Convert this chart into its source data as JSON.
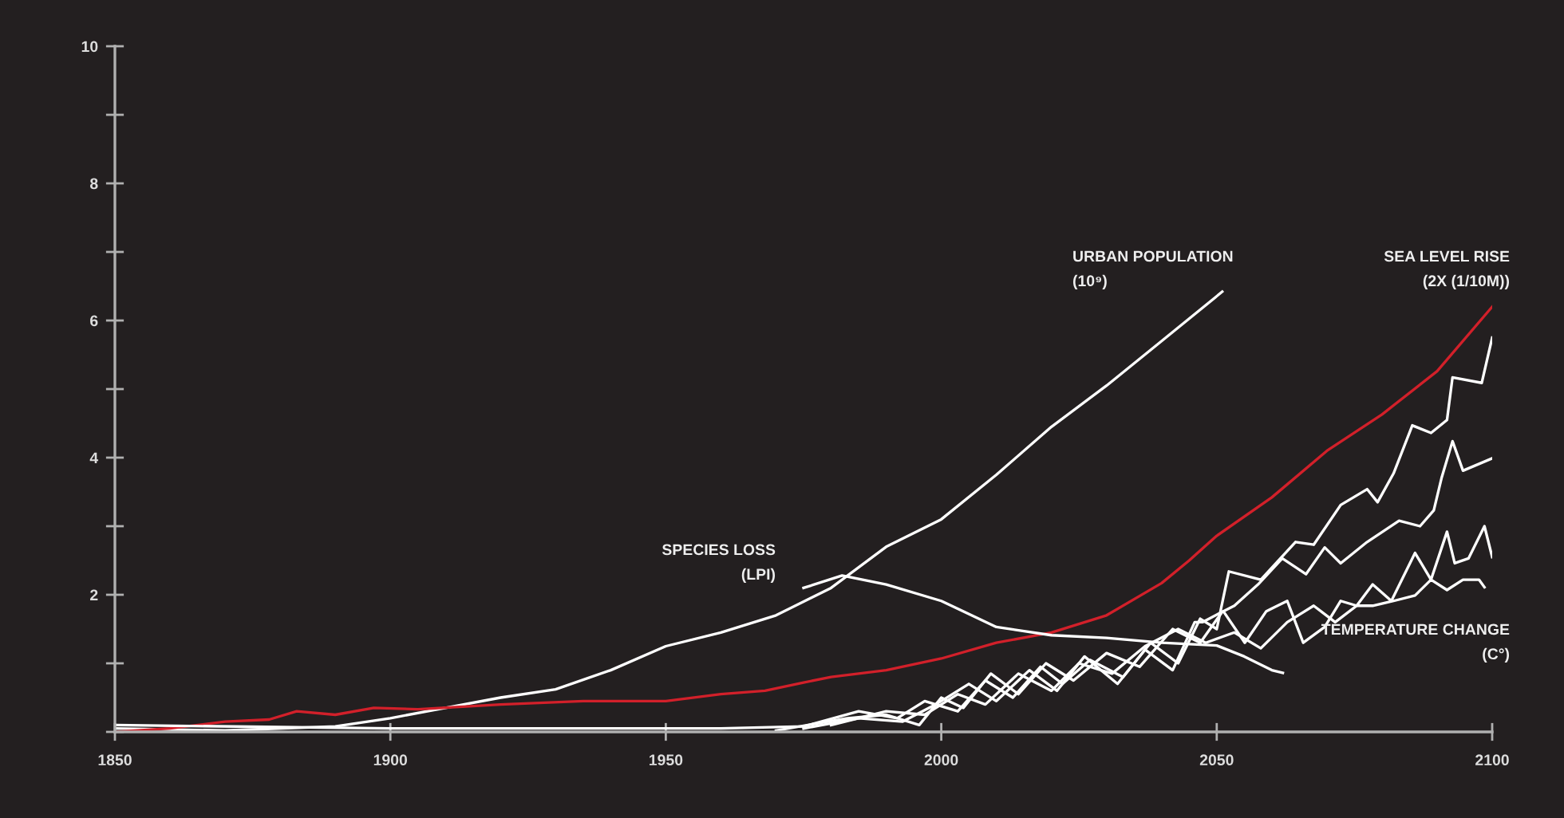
{
  "chart_data": {
    "type": "line",
    "xlim": [
      1850,
      2100
    ],
    "xticks": [
      1850,
      1900,
      1950,
      2000,
      2050,
      2100
    ],
    "ylim": [
      0,
      10
    ],
    "yticks": [
      {
        "value": 0,
        "label": null
      },
      {
        "value": 1,
        "label": null
      },
      2,
      {
        "value": 3,
        "label": null
      },
      4,
      {
        "value": 5,
        "label": null
      },
      6,
      {
        "value": 7,
        "label": null
      },
      8,
      {
        "value": 9,
        "label": null
      },
      10
    ],
    "grid": false,
    "marker": "none",
    "line_style": "solid",
    "series": [
      {
        "color": "#ffffff",
        "x": [
          1850,
          1870,
          1890,
          1900,
          1910,
          1920,
          1930,
          1940,
          1950,
          1960,
          1970,
          1980,
          1990,
          2000,
          2010,
          2020,
          2030,
          2040,
          2051
        ],
        "values": [
          0.05,
          0.02,
          0.08,
          0.2,
          0.35,
          0.5,
          0.62,
          0.9,
          1.25,
          1.45,
          1.7,
          2.1,
          2.7,
          3.1,
          3.75,
          4.45,
          5.05,
          5.7,
          6.42
        ]
      },
      {
        "color": "#d2202a",
        "x": [
          1850,
          1860,
          1870,
          1878,
          1883,
          1890,
          1897,
          1905,
          1920,
          1935,
          1950,
          1960,
          1968,
          1975,
          1980,
          1990,
          2000,
          2010,
          2020,
          2030,
          2040,
          2045,
          2050,
          2060,
          2070,
          2080,
          2090,
          2100
        ],
        "values": [
          0.0,
          0.05,
          0.15,
          0.18,
          0.3,
          0.25,
          0.35,
          0.33,
          0.4,
          0.45,
          0.45,
          0.55,
          0.6,
          0.72,
          0.8,
          0.9,
          1.07,
          1.3,
          1.45,
          1.7,
          2.17,
          2.5,
          2.86,
          3.42,
          4.1,
          4.63,
          5.26,
          6.2
        ]
      },
      {
        "color": "#ffffff",
        "x": [
          1975,
          1982,
          1990,
          2000,
          2010,
          2020,
          2030,
          2040,
          2050,
          2055,
          2060,
          2062
        ],
        "values": [
          2.1,
          2.28,
          2.15,
          1.91,
          1.53,
          1.41,
          1.37,
          1.3,
          1.26,
          1.1,
          0.9,
          0.86
        ]
      },
      {
        "color": "#ffffff",
        "x": [
          1850,
          1900,
          1960,
          1975,
          1985,
          1992,
          1997,
          2003,
          2008,
          2013,
          2018,
          2022,
          2027,
          2033,
          2038,
          2043,
          2047,
          2050,
          2052.2,
          2058,
          2064.3,
          2067.6,
          2072.5,
          2077.3,
          2079.2,
          2082.1,
          2085.5,
          2088.9,
          2091.8,
          2092.8,
          2098.1,
          2100
        ],
        "values": [
          0.1,
          0.05,
          0.05,
          0.08,
          0.3,
          0.2,
          0.45,
          0.3,
          0.75,
          0.5,
          0.95,
          0.7,
          1.05,
          0.8,
          1.3,
          1.0,
          1.65,
          1.5,
          2.34,
          2.22,
          2.77,
          2.73,
          3.31,
          3.54,
          3.35,
          3.77,
          4.47,
          4.36,
          4.55,
          5.17,
          5.09,
          5.75
        ]
      },
      {
        "color": "#ffffff",
        "x": [
          1970,
          1983,
          1990,
          1996,
          2000,
          2004,
          2009,
          2014,
          2019,
          2024,
          2030,
          2036,
          2042,
          2047,
          2051,
          2053.2,
          2057.5,
          2061.9,
          2066.2,
          2069.6,
          2072.5,
          2077.3,
          2083.1,
          2086.9,
          2089.4,
          2090.8,
          2092.8,
          2094.7,
          2100
        ],
        "values": [
          0.02,
          0.2,
          0.25,
          0.1,
          0.5,
          0.35,
          0.85,
          0.55,
          1.0,
          0.75,
          1.15,
          0.95,
          1.5,
          1.3,
          1.75,
          1.84,
          2.15,
          2.53,
          2.3,
          2.69,
          2.46,
          2.77,
          3.08,
          3.0,
          3.23,
          3.7,
          4.24,
          3.81,
          3.99
        ]
      },
      {
        "color": "#ffffff",
        "x": [
          1975,
          1985,
          1993,
          1999,
          2005,
          2010,
          2016,
          2021,
          2026,
          2032,
          2037,
          2042,
          2046,
          2047.4,
          2051.2,
          2055.1,
          2059,
          2062.8,
          2065.7,
          2069.6,
          2072.5,
          2075.4,
          2078.3,
          2081.7,
          2086,
          2088.9,
          2091.8,
          2093.2,
          2095.7,
          2098.6,
          2100
        ],
        "values": [
          0.05,
          0.2,
          0.15,
          0.4,
          0.7,
          0.45,
          0.9,
          0.6,
          1.1,
          0.7,
          1.2,
          0.9,
          1.6,
          1.6,
          1.76,
          1.3,
          1.76,
          1.91,
          1.3,
          1.53,
          1.91,
          1.84,
          2.15,
          1.91,
          2.61,
          2.22,
          2.92,
          2.46,
          2.53,
          3.0,
          2.55
        ]
      },
      {
        "color": "#ffffff",
        "x": [
          1980,
          1990,
          1997,
          2003,
          2008,
          2014,
          2020,
          2025,
          2031,
          2037,
          2043,
          2048,
          2053.2,
          2058,
          2062.8,
          2067.6,
          2071.5,
          2075.4,
          2078.3,
          2082.1,
          2086,
          2088.9,
          2091.8,
          2094.7,
          2097.6,
          2098.6
        ],
        "values": [
          0.1,
          0.3,
          0.25,
          0.55,
          0.4,
          0.85,
          0.6,
          1.0,
          0.85,
          1.25,
          1.5,
          1.3,
          1.45,
          1.22,
          1.6,
          1.84,
          1.6,
          1.84,
          1.84,
          1.91,
          1.99,
          2.22,
          2.07,
          2.22,
          2.22,
          2.11
        ]
      }
    ],
    "annotations": [
      "URBAN POPULATION\n(10⁹)",
      "SEA LEVEL RISE\n(2X (1/10M))",
      "SPECIES LOSS\n(LPI)",
      "TEMPERATURE CHANGE\n(C°)"
    ]
  }
}
